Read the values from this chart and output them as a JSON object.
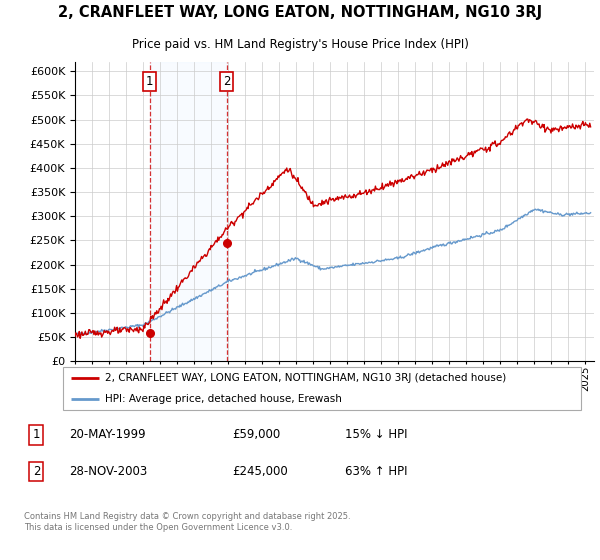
{
  "title": "2, CRANFLEET WAY, LONG EATON, NOTTINGHAM, NG10 3RJ",
  "subtitle": "Price paid vs. HM Land Registry's House Price Index (HPI)",
  "legend_line1": "2, CRANFLEET WAY, LONG EATON, NOTTINGHAM, NG10 3RJ (detached house)",
  "legend_line2": "HPI: Average price, detached house, Erewash",
  "transaction1_date": "20-MAY-1999",
  "transaction1_price": "£59,000",
  "transaction1_hpi": "15% ↓ HPI",
  "transaction2_date": "28-NOV-2003",
  "transaction2_price": "£245,000",
  "transaction2_hpi": "63% ↑ HPI",
  "footer": "Contains HM Land Registry data © Crown copyright and database right 2025.\nThis data is licensed under the Open Government Licence v3.0.",
  "line_color_red": "#cc0000",
  "line_color_blue": "#6699cc",
  "shade_color": "#ddeeff",
  "grid_color": "#cccccc",
  "background_color": "#ffffff",
  "ylim": [
    0,
    620000
  ],
  "yticks": [
    0,
    50000,
    100000,
    150000,
    200000,
    250000,
    300000,
    350000,
    400000,
    450000,
    500000,
    550000,
    600000
  ],
  "xlim_start": 1995.0,
  "xlim_end": 2025.5,
  "transaction1_x": 1999.38,
  "transaction1_y": 59000,
  "transaction2_x": 2003.91,
  "transaction2_y": 245000,
  "shade_x1": 1999.38,
  "shade_x2": 2003.91
}
